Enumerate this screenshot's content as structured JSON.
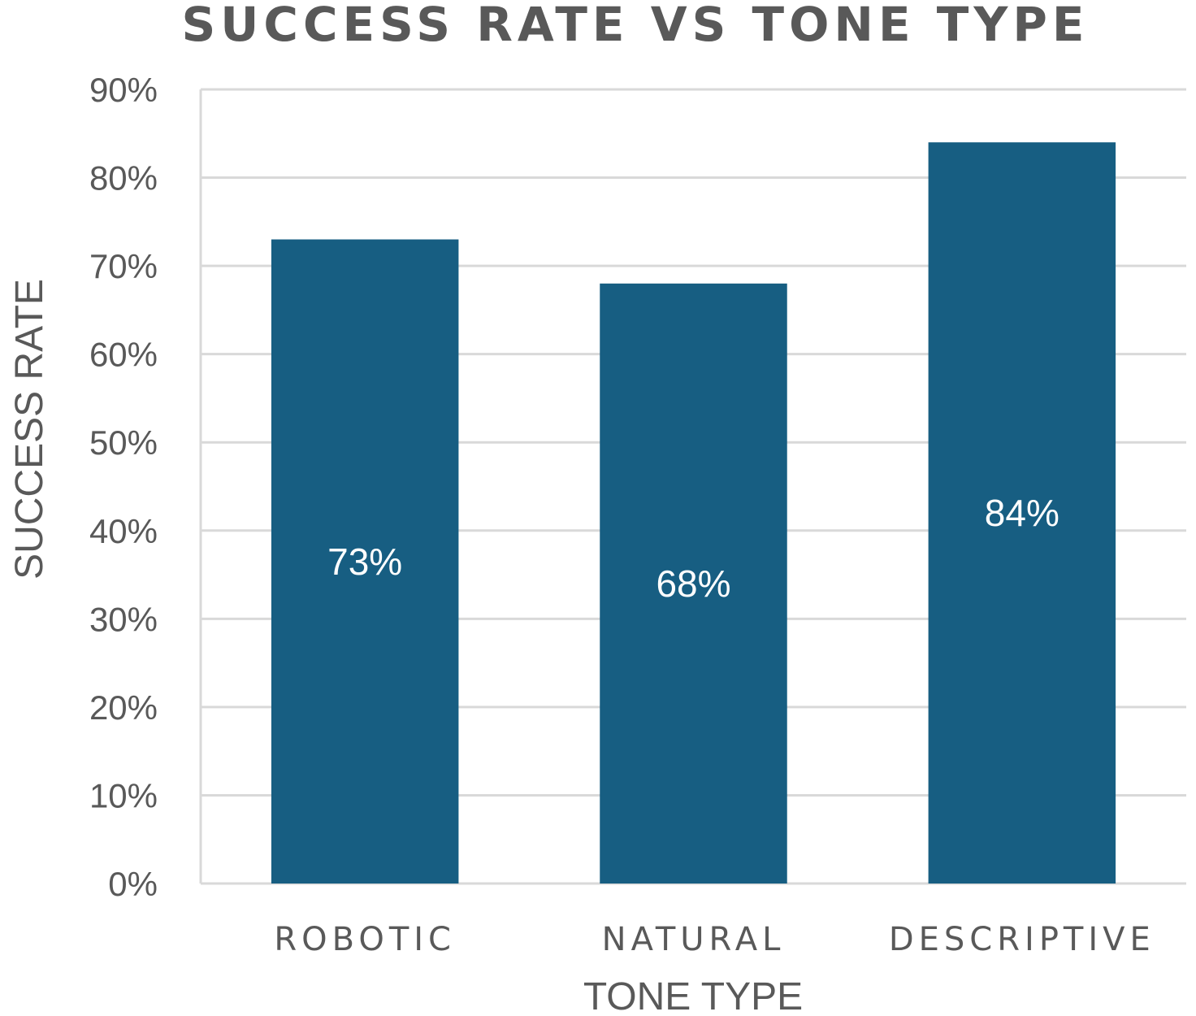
{
  "chart_data": {
    "type": "bar",
    "title": "SUCCESS RATE VS TONE TYPE",
    "xlabel": "TONE TYPE",
    "ylabel": "SUCCESS RATE",
    "categories": [
      "ROBOTIC",
      "NATURAL",
      "DESCRIPTIVE"
    ],
    "values": [
      73,
      68,
      84
    ],
    "data_labels": [
      "73%",
      "68%",
      "84%"
    ],
    "ylim": [
      0,
      90
    ],
    "yticks": [
      0,
      10,
      20,
      30,
      40,
      50,
      60,
      70,
      80,
      90
    ],
    "ytick_labels": [
      "0%",
      "10%",
      "20%",
      "30%",
      "40%",
      "50%",
      "60%",
      "70%",
      "80%",
      "90%"
    ],
    "grid": true,
    "legend": "none"
  },
  "colors": {
    "bar": "#175e82",
    "text": "#595959",
    "grid": "#d9d9d9",
    "label": "#ffffff"
  }
}
